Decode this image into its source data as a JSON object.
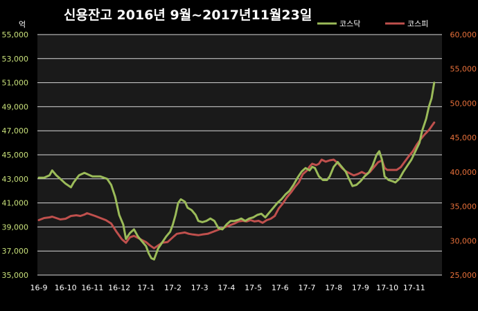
{
  "chart_data": {
    "type": "line",
    "title": "신용잔고  2016년 9월~2017년11월23일",
    "y_left_unit": "억",
    "y_left_ticks": [
      "35,000",
      "37,000",
      "39,000",
      "41,000",
      "43,000",
      "45,000",
      "47,000",
      "49,000",
      "51,000",
      "53,000",
      "55,000"
    ],
    "y_right_ticks": [
      "25,000",
      "30,000",
      "35,000",
      "40,000",
      "45,000",
      "50,000",
      "55,000",
      "60,000"
    ],
    "x_ticks": [
      "16-9",
      "16-10",
      "16-11",
      "16-12",
      "17-1",
      "17-2",
      "17-3",
      "17-4",
      "17-5",
      "17-6",
      "17-7",
      "17-8",
      "17-9",
      "17-10",
      "17-11"
    ],
    "y_left_range": [
      35000,
      55000
    ],
    "y_right_range": [
      25000,
      60000
    ],
    "grid": true,
    "legend_position": "top-right",
    "colors": {
      "kosdaq": "#9bbb59",
      "kospi": "#c0504d",
      "plot_bg": "#1a1a1a",
      "grid": "#d9d9d9",
      "left_axis": "#c8e07a",
      "right_axis": "#e8703a"
    },
    "series": [
      {
        "name": "코스닥",
        "axis": "left",
        "color": "#9bbb59",
        "points": [
          [
            0.0,
            43100
          ],
          [
            0.2,
            43100
          ],
          [
            0.4,
            43300
          ],
          [
            0.5,
            43700
          ],
          [
            0.65,
            43300
          ],
          [
            0.8,
            43000
          ],
          [
            1.0,
            42600
          ],
          [
            1.2,
            42300
          ],
          [
            1.3,
            42700
          ],
          [
            1.5,
            43300
          ],
          [
            1.7,
            43500
          ],
          [
            1.8,
            43400
          ],
          [
            2.0,
            43200
          ],
          [
            2.3,
            43200
          ],
          [
            2.55,
            43000
          ],
          [
            2.7,
            42500
          ],
          [
            2.85,
            41500
          ],
          [
            3.0,
            40000
          ],
          [
            3.15,
            39200
          ],
          [
            3.25,
            38000
          ],
          [
            3.4,
            38500
          ],
          [
            3.55,
            38800
          ],
          [
            3.7,
            38200
          ],
          [
            3.85,
            37800
          ],
          [
            4.0,
            37400
          ],
          [
            4.1,
            36800
          ],
          [
            4.2,
            36400
          ],
          [
            4.3,
            36300
          ],
          [
            4.45,
            37200
          ],
          [
            4.6,
            37700
          ],
          [
            4.75,
            38200
          ],
          [
            4.9,
            38600
          ],
          [
            5.0,
            39200
          ],
          [
            5.1,
            40000
          ],
          [
            5.2,
            41000
          ],
          [
            5.3,
            41300
          ],
          [
            5.45,
            41100
          ],
          [
            5.55,
            40600
          ],
          [
            5.7,
            40400
          ],
          [
            5.85,
            40000
          ],
          [
            5.95,
            39500
          ],
          [
            6.1,
            39400
          ],
          [
            6.25,
            39500
          ],
          [
            6.4,
            39700
          ],
          [
            6.55,
            39500
          ],
          [
            6.7,
            38900
          ],
          [
            6.85,
            38800
          ],
          [
            7.0,
            39200
          ],
          [
            7.15,
            39500
          ],
          [
            7.3,
            39500
          ],
          [
            7.45,
            39600
          ],
          [
            7.55,
            39700
          ],
          [
            7.7,
            39500
          ],
          [
            7.85,
            39700
          ],
          [
            8.0,
            39800
          ],
          [
            8.15,
            40000
          ],
          [
            8.3,
            40100
          ],
          [
            8.45,
            39800
          ],
          [
            8.6,
            40200
          ],
          [
            8.75,
            40600
          ],
          [
            8.9,
            41000
          ],
          [
            9.05,
            41300
          ],
          [
            9.2,
            41700
          ],
          [
            9.35,
            42000
          ],
          [
            9.5,
            42500
          ],
          [
            9.65,
            43100
          ],
          [
            9.8,
            43600
          ],
          [
            9.95,
            43900
          ],
          [
            10.1,
            43700
          ],
          [
            10.2,
            44000
          ],
          [
            10.3,
            43900
          ],
          [
            10.45,
            43200
          ],
          [
            10.6,
            42900
          ],
          [
            10.75,
            42900
          ],
          [
            10.85,
            43200
          ],
          [
            11.0,
            44000
          ],
          [
            11.15,
            44400
          ],
          [
            11.3,
            44000
          ],
          [
            11.45,
            43600
          ],
          [
            11.55,
            43100
          ],
          [
            11.7,
            42400
          ],
          [
            11.85,
            42500
          ],
          [
            12.0,
            42800
          ],
          [
            12.15,
            43200
          ],
          [
            12.3,
            43500
          ],
          [
            12.45,
            44100
          ],
          [
            12.6,
            45000
          ],
          [
            12.7,
            45300
          ],
          [
            12.8,
            44600
          ],
          [
            12.9,
            43200
          ],
          [
            13.05,
            42900
          ],
          [
            13.2,
            42800
          ],
          [
            13.3,
            42700
          ],
          [
            13.45,
            43000
          ],
          [
            13.6,
            43600
          ],
          [
            13.75,
            44100
          ],
          [
            13.9,
            44600
          ],
          [
            14.05,
            45300
          ],
          [
            14.2,
            46000
          ],
          [
            14.3,
            47000
          ],
          [
            14.45,
            48000
          ],
          [
            14.55,
            49000
          ],
          [
            14.65,
            49700
          ],
          [
            14.75,
            51000
          ]
        ]
      },
      {
        "name": "코스피",
        "axis": "right",
        "color": "#c0504d",
        "points": [
          [
            0.0,
            33000
          ],
          [
            0.2,
            33300
          ],
          [
            0.4,
            33400
          ],
          [
            0.5,
            33500
          ],
          [
            0.65,
            33300
          ],
          [
            0.8,
            33100
          ],
          [
            1.0,
            33200
          ],
          [
            1.2,
            33600
          ],
          [
            1.4,
            33700
          ],
          [
            1.55,
            33600
          ],
          [
            1.7,
            33800
          ],
          [
            1.8,
            34000
          ],
          [
            1.95,
            33800
          ],
          [
            2.1,
            33600
          ],
          [
            2.3,
            33300
          ],
          [
            2.5,
            33000
          ],
          [
            2.7,
            32500
          ],
          [
            2.9,
            31300
          ],
          [
            3.1,
            30200
          ],
          [
            3.25,
            29700
          ],
          [
            3.4,
            30500
          ],
          [
            3.55,
            30700
          ],
          [
            3.7,
            30400
          ],
          [
            3.85,
            30100
          ],
          [
            4.0,
            29800
          ],
          [
            4.15,
            29300
          ],
          [
            4.3,
            28900
          ],
          [
            4.45,
            29300
          ],
          [
            4.6,
            29700
          ],
          [
            4.8,
            29800
          ],
          [
            5.0,
            30500
          ],
          [
            5.15,
            31000
          ],
          [
            5.3,
            31100
          ],
          [
            5.45,
            31200
          ],
          [
            5.6,
            31000
          ],
          [
            5.75,
            30900
          ],
          [
            5.95,
            30800
          ],
          [
            6.1,
            30900
          ],
          [
            6.3,
            31000
          ],
          [
            6.5,
            31300
          ],
          [
            6.7,
            31600
          ],
          [
            6.9,
            31900
          ],
          [
            7.1,
            32200
          ],
          [
            7.3,
            32500
          ],
          [
            7.45,
            32800
          ],
          [
            7.6,
            32900
          ],
          [
            7.75,
            32800
          ],
          [
            7.9,
            33000
          ],
          [
            8.05,
            32800
          ],
          [
            8.2,
            32900
          ],
          [
            8.35,
            32600
          ],
          [
            8.5,
            33000
          ],
          [
            8.65,
            33200
          ],
          [
            8.8,
            33600
          ],
          [
            8.95,
            34700
          ],
          [
            9.1,
            35400
          ],
          [
            9.25,
            36300
          ],
          [
            9.4,
            37000
          ],
          [
            9.55,
            37800
          ],
          [
            9.7,
            38500
          ],
          [
            9.85,
            39700
          ],
          [
            10.0,
            40200
          ],
          [
            10.1,
            40800
          ],
          [
            10.2,
            41200
          ],
          [
            10.35,
            41000
          ],
          [
            10.45,
            41200
          ],
          [
            10.55,
            41800
          ],
          [
            10.7,
            41500
          ],
          [
            10.85,
            41700
          ],
          [
            11.0,
            41800
          ],
          [
            11.15,
            41300
          ],
          [
            11.3,
            40600
          ],
          [
            11.45,
            40100
          ],
          [
            11.6,
            39800
          ],
          [
            11.75,
            39500
          ],
          [
            11.9,
            39700
          ],
          [
            12.05,
            40000
          ],
          [
            12.2,
            39700
          ],
          [
            12.35,
            40000
          ],
          [
            12.5,
            40700
          ],
          [
            12.65,
            41400
          ],
          [
            12.8,
            41700
          ],
          [
            12.9,
            40600
          ],
          [
            13.0,
            40300
          ],
          [
            13.2,
            40300
          ],
          [
            13.35,
            40300
          ],
          [
            13.5,
            40700
          ],
          [
            13.65,
            41500
          ],
          [
            13.8,
            42300
          ],
          [
            13.95,
            43000
          ],
          [
            14.1,
            44000
          ],
          [
            14.25,
            44800
          ],
          [
            14.4,
            45500
          ],
          [
            14.55,
            46100
          ],
          [
            14.75,
            47200
          ]
        ]
      }
    ]
  }
}
